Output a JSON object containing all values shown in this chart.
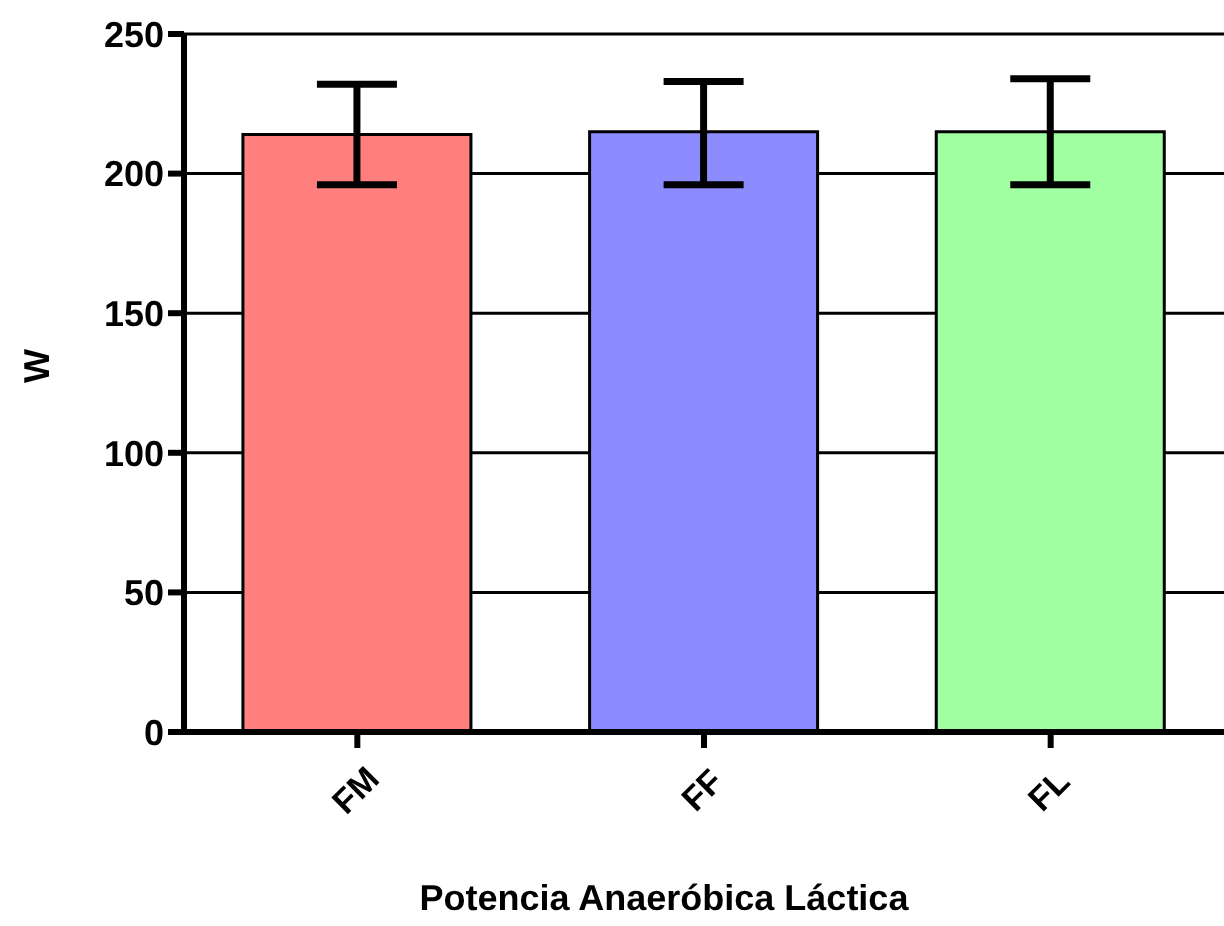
{
  "chart_data": {
    "type": "bar",
    "xlabel": "Potencia Anaeróbica Láctica",
    "ylabel": "W",
    "categories": [
      "FM",
      "FF",
      "FL"
    ],
    "values": [
      214,
      215,
      215
    ],
    "colors": [
      "#ff7f7f",
      "#8c8cff",
      "#a0ffa0"
    ],
    "errors": [
      [
        196,
        232
      ],
      [
        196,
        233
      ],
      [
        196,
        234
      ]
    ],
    "ylim": [
      0,
      250
    ],
    "yticks": [
      0,
      50,
      100,
      150,
      200,
      250
    ],
    "grid": "y",
    "legend": false
  }
}
